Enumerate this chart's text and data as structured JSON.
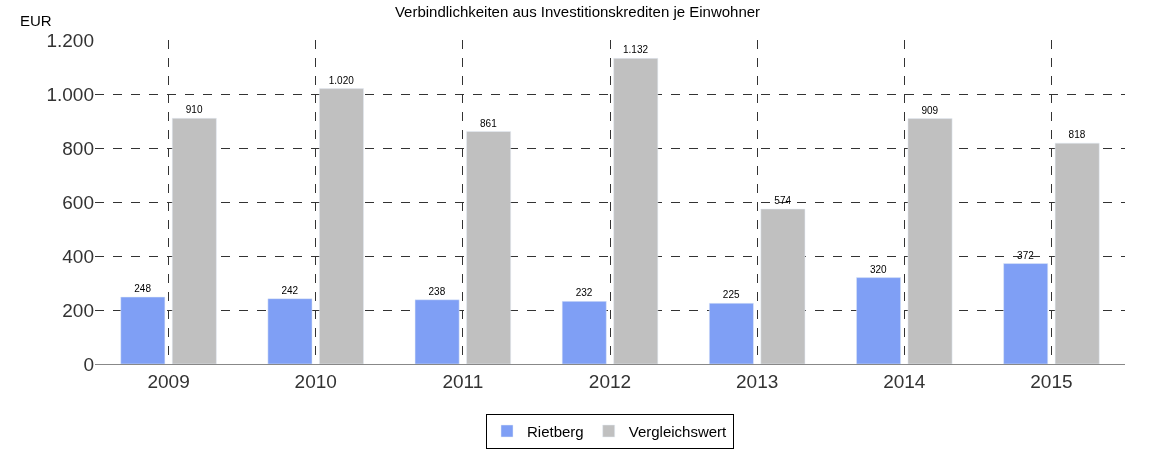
{
  "chart_data": {
    "type": "bar",
    "title": "Verbindlichkeiten aus Investitionskrediten je Einwohner",
    "ylabel": "EUR",
    "categories": [
      "2009",
      "2010",
      "2011",
      "2012",
      "2013",
      "2014",
      "2015"
    ],
    "series": [
      {
        "name": "Rietberg",
        "color": "#7f9ff5",
        "values": [
          248,
          242,
          238,
          232,
          225,
          320,
          372
        ],
        "value_labels": [
          "248",
          "242",
          "238",
          "232",
          "225",
          "320",
          "372"
        ]
      },
      {
        "name": "Vergleichswert",
        "color": "#c0c0c0",
        "values": [
          910,
          1020,
          861,
          1132,
          574,
          909,
          818
        ],
        "value_labels": [
          "910",
          "1.020",
          "861",
          "1.132",
          "574",
          "909",
          "818"
        ]
      }
    ],
    "ylim": [
      0,
      1200
    ],
    "yticks": [
      0,
      200,
      400,
      600,
      800,
      {
        "value": 1000,
        "label": "1.000"
      },
      {
        "value": 1200,
        "label": "1.200"
      }
    ],
    "grid": true,
    "legend": "bottom"
  }
}
